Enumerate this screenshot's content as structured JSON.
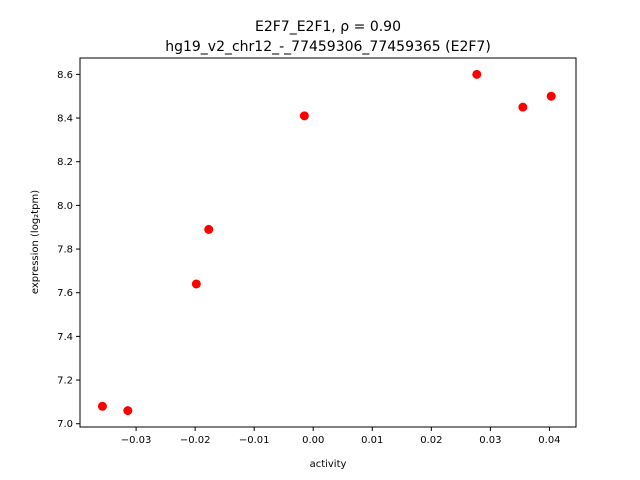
{
  "chart_data": {
    "type": "scatter",
    "title_line1": "E2F7_E2F1, ρ = 0.90",
    "title_line2": "hg19_v2_chr12_-_77459306_77459365 (E2F7)",
    "xlabel": "activity",
    "ylabel": "expression (log₂tpm)",
    "xlim": [
      -0.0395,
      0.0445
    ],
    "ylim": [
      6.985,
      8.675
    ],
    "xticks": [
      -0.03,
      -0.02,
      -0.01,
      0.0,
      0.01,
      0.02,
      0.03,
      0.04
    ],
    "xtick_labels": [
      "−0.03",
      "−0.02",
      "−0.01",
      "0.00",
      "0.01",
      "0.02",
      "0.03",
      "0.04"
    ],
    "yticks": [
      7.0,
      7.2,
      7.4,
      7.6,
      7.8,
      8.0,
      8.2,
      8.4,
      8.6
    ],
    "ytick_labels": [
      "7.0",
      "7.2",
      "7.4",
      "7.6",
      "7.8",
      "8.0",
      "8.2",
      "8.4",
      "8.6"
    ],
    "marker_color": "#ff0000",
    "grid": false,
    "points": [
      {
        "x": -0.0357,
        "y": 7.08
      },
      {
        "x": -0.0314,
        "y": 7.06
      },
      {
        "x": -0.0198,
        "y": 7.64
      },
      {
        "x": -0.0177,
        "y": 7.89
      },
      {
        "x": -0.0015,
        "y": 8.41
      },
      {
        "x": 0.0277,
        "y": 8.6
      },
      {
        "x": 0.0355,
        "y": 8.45
      },
      {
        "x": 0.0403,
        "y": 8.5
      }
    ]
  }
}
